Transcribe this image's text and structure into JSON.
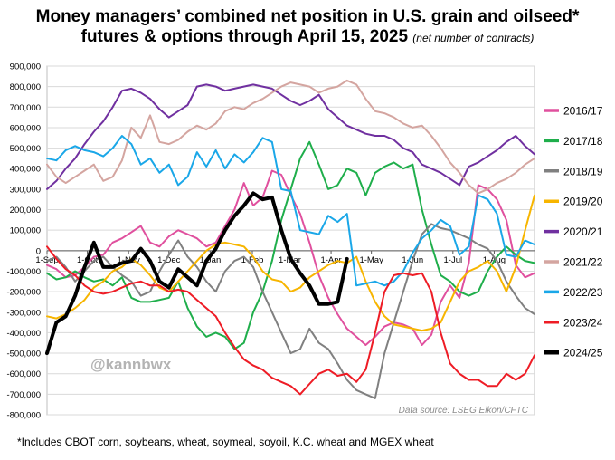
{
  "title_line1": "Money managers’ combined net position in U.S. grain and oilseed*",
  "title_line2": "futures & options through April 15, 2025",
  "subtitle": "(net number of contracts)",
  "watermark": "@kannbwx",
  "source": "Data source: LSEG Eikon/CFTC",
  "footnote": "*Includes CBOT corn, soybeans, wheat, soymeal, soyoil, K.C. wheat and MGEX wheat",
  "chart_data": {
    "type": "line",
    "ylim": [
      -800000,
      900000
    ],
    "ytick_step": 100000,
    "ytick_labels": [
      "-800,000",
      "-700,000",
      "-600,000",
      "-500,000",
      "-400,000",
      "-300,000",
      "-200,000",
      "-100,000",
      "0",
      "100,000",
      "200,000",
      "300,000",
      "400,000",
      "500,000",
      "600,000",
      "700,000",
      "800,000",
      "900,000"
    ],
    "x_ticks": [
      "1-Sep",
      "1-Oct",
      "1-Nov",
      "1-Dec",
      "1-Jan",
      "1-Feb",
      "1-Mar",
      "1-Apr",
      "1-May",
      "1-Jun",
      "1-Jul",
      "1-Aug"
    ],
    "x_tick_weeks": [
      0,
      4.3,
      8.7,
      13,
      17.4,
      21.9,
      25.9,
      30.3,
      34.6,
      39,
      43.3,
      47.7
    ],
    "x_range_weeks": [
      0,
      52
    ],
    "grid": true,
    "legend_position": "right",
    "series": [
      {
        "name": "2016/17",
        "color": "#e0509e",
        "width": 2,
        "values": [
          -70000,
          -90000,
          -130000,
          -120000,
          -80000,
          -30000,
          -20000,
          40000,
          60000,
          90000,
          120000,
          40000,
          20000,
          70000,
          100000,
          80000,
          60000,
          20000,
          40000,
          120000,
          200000,
          330000,
          220000,
          260000,
          390000,
          370000,
          270000,
          180000,
          40000,
          -120000,
          -230000,
          -310000,
          -380000,
          -420000,
          -460000,
          -420000,
          -370000,
          -350000,
          -360000,
          -380000,
          -460000,
          -410000,
          -250000,
          -170000,
          -230000,
          -60000,
          320000,
          300000,
          250000,
          150000,
          -70000,
          -130000,
          -110000
        ]
      },
      {
        "name": "2017/18",
        "color": "#1fae4b",
        "width": 2,
        "values": [
          -110000,
          -140000,
          -130000,
          -100000,
          -130000,
          -150000,
          -140000,
          -170000,
          -130000,
          -230000,
          -250000,
          -250000,
          -240000,
          -230000,
          -150000,
          -280000,
          -370000,
          -420000,
          -400000,
          -420000,
          -480000,
          -450000,
          -300000,
          -200000,
          -50000,
          150000,
          300000,
          450000,
          530000,
          420000,
          300000,
          320000,
          400000,
          380000,
          270000,
          380000,
          410000,
          430000,
          400000,
          420000,
          200000,
          30000,
          -120000,
          -150000,
          -200000,
          -220000,
          -200000,
          -100000,
          -30000,
          20000,
          -20000,
          -50000,
          -60000
        ]
      },
      {
        "name": "2018/19",
        "color": "#808080",
        "width": 2,
        "values": [
          -50000,
          -30000,
          -80000,
          -150000,
          -100000,
          -50000,
          -30000,
          -80000,
          -120000,
          -150000,
          -220000,
          -200000,
          -100000,
          -20000,
          50000,
          -30000,
          -80000,
          -150000,
          -200000,
          -100000,
          -50000,
          -30000,
          -80000,
          -200000,
          -300000,
          -400000,
          -500000,
          -480000,
          -380000,
          -450000,
          -480000,
          -550000,
          -630000,
          -680000,
          -700000,
          -720000,
          -500000,
          -350000,
          -200000,
          -50000,
          80000,
          130000,
          110000,
          100000,
          80000,
          60000,
          30000,
          10000,
          -50000,
          -150000,
          -220000,
          -280000,
          -310000
        ]
      },
      {
        "name": "2019/20",
        "color": "#f7b500",
        "width": 2,
        "values": [
          -320000,
          -330000,
          -310000,
          -280000,
          -240000,
          -180000,
          -150000,
          -100000,
          -80000,
          -40000,
          -70000,
          -120000,
          -180000,
          -200000,
          -150000,
          -100000,
          -50000,
          0,
          30000,
          40000,
          30000,
          20000,
          -30000,
          -100000,
          -140000,
          -150000,
          -200000,
          -180000,
          -130000,
          -100000,
          -70000,
          -50000,
          -60000,
          -30000,
          -150000,
          -250000,
          -320000,
          -360000,
          -370000,
          -380000,
          -390000,
          -380000,
          -350000,
          -250000,
          -150000,
          -100000,
          -80000,
          -50000,
          -100000,
          -200000,
          -80000,
          100000,
          270000
        ]
      },
      {
        "name": "2020/21",
        "color": "#7030a0",
        "width": 2,
        "values": [
          300000,
          340000,
          400000,
          450000,
          520000,
          580000,
          630000,
          700000,
          780000,
          790000,
          770000,
          740000,
          690000,
          650000,
          680000,
          710000,
          800000,
          810000,
          800000,
          780000,
          790000,
          800000,
          810000,
          800000,
          790000,
          760000,
          730000,
          710000,
          730000,
          760000,
          690000,
          650000,
          610000,
          590000,
          570000,
          560000,
          560000,
          540000,
          500000,
          480000,
          420000,
          400000,
          380000,
          350000,
          320000,
          410000,
          430000,
          460000,
          490000,
          530000,
          560000,
          510000,
          470000
        ]
      },
      {
        "name": "2021/22",
        "color": "#d4a5a0",
        "width": 2,
        "values": [
          420000,
          360000,
          330000,
          360000,
          390000,
          420000,
          340000,
          360000,
          440000,
          600000,
          550000,
          660000,
          530000,
          520000,
          540000,
          580000,
          610000,
          590000,
          620000,
          680000,
          700000,
          690000,
          720000,
          740000,
          770000,
          800000,
          820000,
          810000,
          800000,
          770000,
          790000,
          800000,
          830000,
          810000,
          740000,
          680000,
          670000,
          650000,
          620000,
          600000,
          610000,
          560000,
          500000,
          430000,
          380000,
          320000,
          280000,
          300000,
          330000,
          350000,
          380000,
          420000,
          450000
        ]
      },
      {
        "name": "2022/23",
        "color": "#1aa7e8",
        "width": 2,
        "values": [
          450000,
          440000,
          490000,
          510000,
          490000,
          480000,
          460000,
          500000,
          560000,
          520000,
          420000,
          450000,
          380000,
          420000,
          320000,
          360000,
          480000,
          410000,
          490000,
          400000,
          470000,
          430000,
          480000,
          550000,
          530000,
          300000,
          290000,
          100000,
          90000,
          80000,
          170000,
          140000,
          180000,
          -170000,
          -160000,
          -150000,
          -170000,
          -150000,
          -100000,
          -10000,
          60000,
          100000,
          150000,
          120000,
          -20000,
          20000,
          270000,
          250000,
          180000,
          -20000,
          -30000,
          50000,
          30000
        ]
      },
      {
        "name": "2023/24",
        "color": "#ee1c25",
        "width": 2,
        "values": [
          20000,
          -40000,
          -90000,
          -120000,
          -170000,
          -200000,
          -210000,
          -200000,
          -180000,
          -160000,
          -150000,
          -170000,
          -170000,
          -200000,
          -190000,
          -200000,
          -240000,
          -280000,
          -320000,
          -400000,
          -470000,
          -530000,
          -560000,
          -580000,
          -620000,
          -640000,
          -660000,
          -700000,
          -650000,
          -600000,
          -580000,
          -610000,
          -600000,
          -640000,
          -580000,
          -400000,
          -200000,
          -120000,
          -110000,
          -120000,
          -110000,
          -200000,
          -400000,
          -550000,
          -600000,
          -630000,
          -630000,
          -660000,
          -660000,
          -600000,
          -630000,
          -600000,
          -510000
        ]
      },
      {
        "name": "2024/25",
        "color": "#000000",
        "width": 4,
        "values": [
          -500000,
          -350000,
          -320000,
          -220000,
          -80000,
          40000,
          -80000,
          -80000,
          -60000,
          -50000,
          10000,
          -50000,
          -150000,
          -180000,
          -90000,
          -130000,
          -170000,
          -50000,
          10000,
          100000,
          170000,
          220000,
          280000,
          250000,
          260000,
          100000,
          -40000,
          -110000,
          -170000,
          -260000,
          -260000,
          -250000,
          -40000
        ]
      }
    ]
  }
}
